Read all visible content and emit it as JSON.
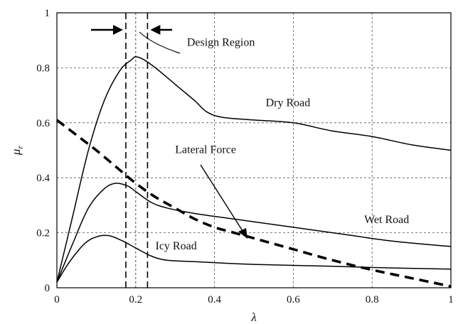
{
  "chart_data": {
    "type": "line",
    "xlabel": "λ",
    "ylabel": "μ_r",
    "xlim": [
      0,
      1
    ],
    "ylim": [
      0,
      1
    ],
    "xticks": [
      "0",
      "0.2",
      "0.4",
      "0.6",
      "0.8",
      "1"
    ],
    "yticks": [
      "0",
      "0.2",
      "0.4",
      "0.6",
      "0.8",
      "1"
    ],
    "grid": "dashed",
    "design_region": {
      "label": "Design Region",
      "x_start": 0.175,
      "x_end": 0.23,
      "center_x": 0.2
    },
    "series": [
      {
        "name": "Dry Road",
        "style": "solid",
        "points": [
          [
            0,
            0.02
          ],
          [
            0.04,
            0.26
          ],
          [
            0.08,
            0.5
          ],
          [
            0.12,
            0.68
          ],
          [
            0.16,
            0.79
          ],
          [
            0.19,
            0.83
          ],
          [
            0.2,
            0.84
          ],
          [
            0.22,
            0.83
          ],
          [
            0.25,
            0.8
          ],
          [
            0.3,
            0.74
          ],
          [
            0.35,
            0.68
          ],
          [
            0.38,
            0.64
          ],
          [
            0.42,
            0.62
          ],
          [
            0.5,
            0.61
          ],
          [
            0.6,
            0.6
          ],
          [
            0.7,
            0.57
          ],
          [
            0.8,
            0.55
          ],
          [
            0.9,
            0.52
          ],
          [
            1.0,
            0.5
          ]
        ]
      },
      {
        "name": "Wet Road",
        "style": "solid",
        "points": [
          [
            0,
            0.02
          ],
          [
            0.04,
            0.16
          ],
          [
            0.08,
            0.29
          ],
          [
            0.12,
            0.36
          ],
          [
            0.15,
            0.38
          ],
          [
            0.18,
            0.37
          ],
          [
            0.2,
            0.35
          ],
          [
            0.24,
            0.31
          ],
          [
            0.28,
            0.29
          ],
          [
            0.35,
            0.27
          ],
          [
            0.45,
            0.25
          ],
          [
            0.55,
            0.23
          ],
          [
            0.65,
            0.21
          ],
          [
            0.75,
            0.19
          ],
          [
            0.85,
            0.17
          ],
          [
            1.0,
            0.15
          ]
        ]
      },
      {
        "name": "Icy Road",
        "style": "solid",
        "points": [
          [
            0,
            0.02
          ],
          [
            0.03,
            0.09
          ],
          [
            0.07,
            0.16
          ],
          [
            0.1,
            0.185
          ],
          [
            0.13,
            0.19
          ],
          [
            0.16,
            0.175
          ],
          [
            0.2,
            0.145
          ],
          [
            0.24,
            0.115
          ],
          [
            0.28,
            0.1
          ],
          [
            0.35,
            0.095
          ],
          [
            0.5,
            0.085
          ],
          [
            0.7,
            0.078
          ],
          [
            0.85,
            0.072
          ],
          [
            1.0,
            0.068
          ]
        ]
      },
      {
        "name": "Lateral Force",
        "style": "dashed",
        "points": [
          [
            0,
            0.61
          ],
          [
            0.05,
            0.555
          ],
          [
            0.1,
            0.5
          ],
          [
            0.15,
            0.44
          ],
          [
            0.2,
            0.38
          ],
          [
            0.25,
            0.33
          ],
          [
            0.3,
            0.29
          ],
          [
            0.35,
            0.25
          ],
          [
            0.4,
            0.22
          ],
          [
            0.45,
            0.2
          ],
          [
            0.5,
            0.18
          ],
          [
            0.6,
            0.14
          ],
          [
            0.7,
            0.1
          ],
          [
            0.8,
            0.065
          ],
          [
            0.9,
            0.035
          ],
          [
            1.0,
            0.005
          ]
        ]
      }
    ],
    "annotations": [
      {
        "text": "Design Region",
        "x": 0.33,
        "y": 0.88
      },
      {
        "text": "Dry Road",
        "x": 0.53,
        "y": 0.66
      },
      {
        "text": "Lateral Force",
        "x": 0.3,
        "y": 0.49
      },
      {
        "text": "Wet Road",
        "x": 0.78,
        "y": 0.235
      },
      {
        "text": "Icy Road",
        "x": 0.25,
        "y": 0.14
      }
    ]
  }
}
